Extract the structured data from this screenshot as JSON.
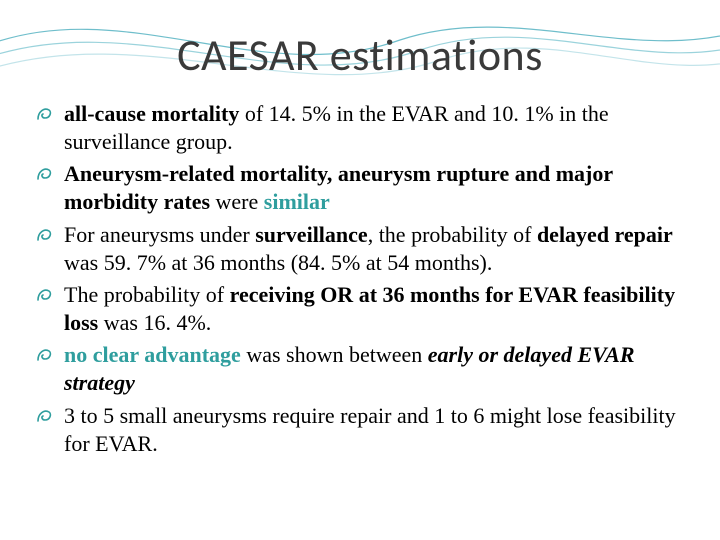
{
  "slide": {
    "title": "CAESAR estimations",
    "title_color": "#3a3a3a",
    "title_fontsize": 44,
    "background_color": "#ffffff",
    "wave": {
      "stroke_colors": [
        "#6fbecb",
        "#9bd3dc",
        "#c3e4ea"
      ],
      "stroke_width": 1.2
    },
    "bullet": {
      "glyph_color": "#2f9e9e",
      "glyph_size": 16
    },
    "body_fontsize": 22,
    "accent_color": "#2f9e9e",
    "items": [
      {
        "runs": [
          {
            "t": "all-cause mortality",
            "style": "bold"
          },
          {
            "t": " of 14. 5% in the EVAR and 10. 1% in the surveillance group."
          }
        ]
      },
      {
        "runs": [
          {
            "t": "Aneurysm-related mortality, aneurysm rupture and major morbidity rates",
            "style": "bold"
          },
          {
            "t": " were "
          },
          {
            "t": "similar",
            "style": "teal-bold"
          }
        ]
      },
      {
        "runs": [
          {
            "t": "For aneurysms under "
          },
          {
            "t": "surveillance",
            "style": "bold"
          },
          {
            "t": ", the probability of "
          },
          {
            "t": "delayed repair",
            "style": "bold"
          },
          {
            "t": " was 59. 7% at 36 months (84. 5% at 54 months)."
          }
        ]
      },
      {
        "runs": [
          {
            "t": "The probability of "
          },
          {
            "t": "receiving OR at 36 months for EVAR feasibility loss",
            "style": "bold"
          },
          {
            "t": " was 16. 4%."
          }
        ]
      },
      {
        "runs": [
          {
            "t": "no clear advantage",
            "style": "teal-bold"
          },
          {
            "t": " was shown between "
          },
          {
            "t": "early or delayed EVAR strategy",
            "style": "bold italic"
          }
        ]
      },
      {
        "runs": [
          {
            "t": "3 to 5 small aneurysms require repair and 1 to 6 might lose feasibility for EVAR."
          }
        ]
      }
    ]
  }
}
